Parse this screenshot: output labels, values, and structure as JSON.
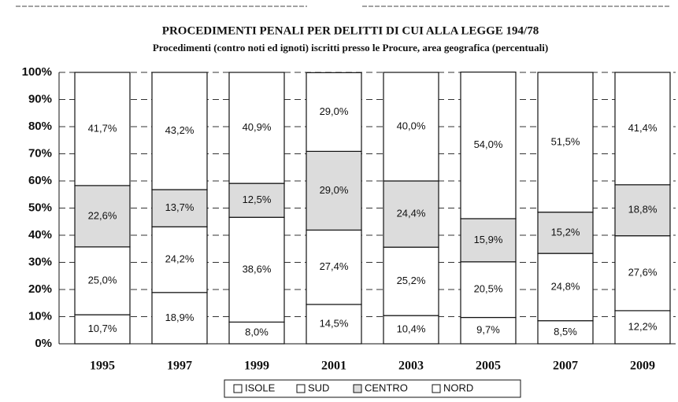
{
  "chart_data": {
    "type": "stacked_bar",
    "title": "PROCEDIMENTI PENALI PER DELITTI DI CUI ALLA LEGGE 194/78",
    "subtitle": "Procedimenti (contro noti ed ignoti) iscritti presso le Procure, area geografica (percentuali)",
    "categories": [
      "1995",
      "1997",
      "1999",
      "2001",
      "2003",
      "2005",
      "2007",
      "2009"
    ],
    "series": [
      {
        "name": "ISOLE",
        "color": "#ffffff",
        "values": [
          10.7,
          18.9,
          8.0,
          14.5,
          10.4,
          9.7,
          8.5,
          12.2
        ],
        "value_labels": [
          "10,7%",
          "18,9%",
          "8,0%",
          "14,5%",
          "10,4%",
          "9,7%",
          "8,5%",
          "12,2%"
        ]
      },
      {
        "name": "SUD",
        "color": "#ffffff",
        "values": [
          25.0,
          24.2,
          38.6,
          27.4,
          25.2,
          20.5,
          24.8,
          27.6
        ],
        "value_labels": [
          "25,0%",
          "24,2%",
          "38,6%",
          "27,4%",
          "25,2%",
          "20,5%",
          "24,8%",
          "27,6%"
        ]
      },
      {
        "name": "CENTRO",
        "color": "#dcdcdc",
        "values": [
          22.6,
          13.7,
          12.5,
          29.0,
          24.4,
          15.9,
          15.2,
          18.8
        ],
        "value_labels": [
          "22,6%",
          "13,7%",
          "12,5%",
          "29,0%",
          "24,4%",
          "15,9%",
          "15,2%",
          "18,8%"
        ]
      },
      {
        "name": "NORD",
        "color": "#ffffff",
        "values": [
          41.7,
          43.2,
          40.9,
          29.0,
          40.0,
          54.0,
          51.5,
          41.4
        ],
        "value_labels": [
          "41,7%",
          "43,2%",
          "40,9%",
          "29,0%",
          "40,0%",
          "54,0%",
          "51,5%",
          "41,4%"
        ]
      }
    ],
    "ylim": [
      0,
      100
    ],
    "yticks": [
      {
        "value": 0,
        "label": "0%"
      },
      {
        "value": 10,
        "label": "10%"
      },
      {
        "value": 20,
        "label": "20%"
      },
      {
        "value": 30,
        "label": "30%"
      },
      {
        "value": 40,
        "label": "40%"
      },
      {
        "value": 50,
        "label": "50%"
      },
      {
        "value": 60,
        "label": "60%"
      },
      {
        "value": 70,
        "label": "70%"
      },
      {
        "value": 80,
        "label": "80%"
      },
      {
        "value": 90,
        "label": "90%"
      },
      {
        "value": 100,
        "label": "100%"
      }
    ],
    "grid": true
  }
}
